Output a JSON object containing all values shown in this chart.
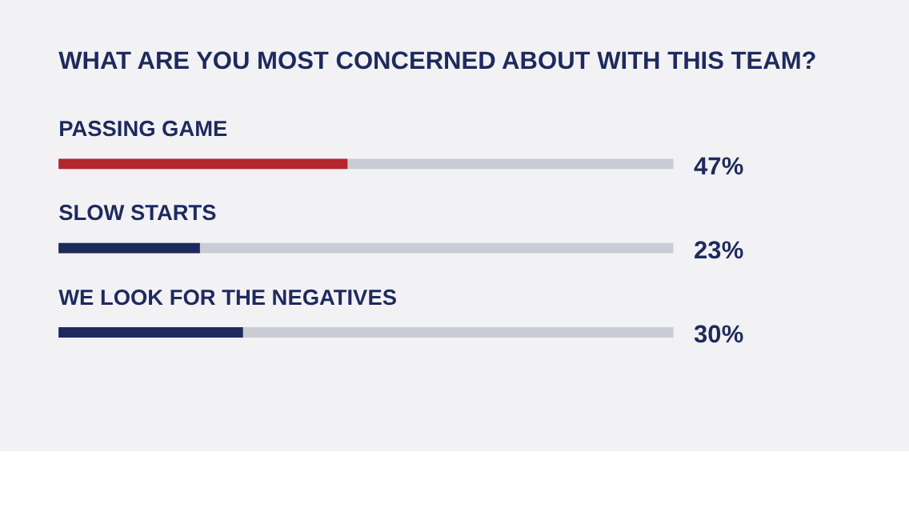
{
  "chart_data": {
    "type": "bar",
    "orientation": "horizontal",
    "title": "WHAT ARE YOU MOST CONCERNED ABOUT WITH THIS TEAM?",
    "categories": [
      "PASSING GAME",
      "SLOW STARTS",
      "WE LOOK FOR THE NEGATIVES"
    ],
    "values": [
      47,
      23,
      30
    ],
    "colors": [
      "#b3262e",
      "#1e2a5e",
      "#1e2a5e"
    ],
    "value_labels": [
      "47%",
      "23%",
      "30%"
    ],
    "xlim": [
      0,
      100
    ]
  }
}
